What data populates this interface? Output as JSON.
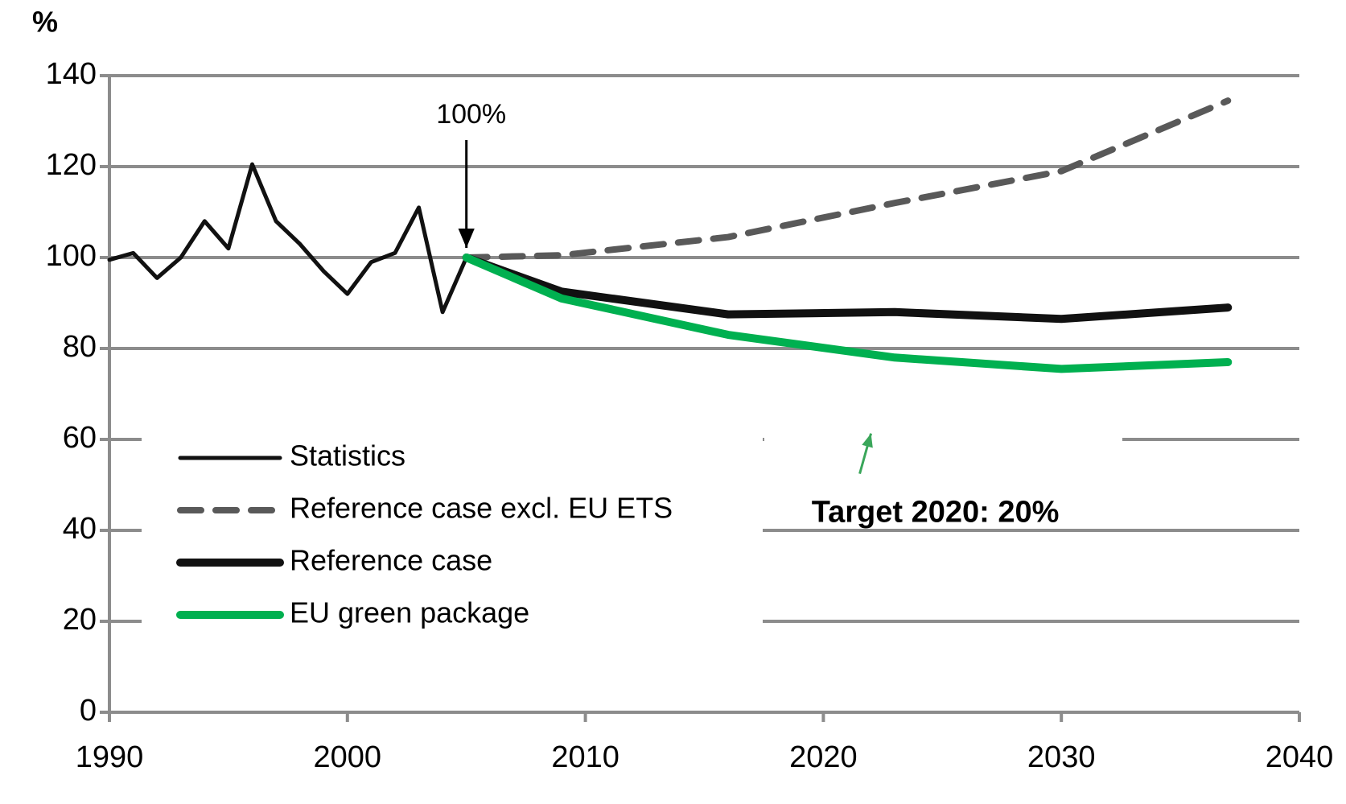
{
  "chart_data": {
    "type": "line",
    "y_label": "%",
    "xlim": [
      1990,
      2040
    ],
    "xticks": [
      1990,
      2000,
      2010,
      2020,
      2030,
      2040
    ],
    "ylim": [
      0,
      140
    ],
    "yticks": [
      0,
      20,
      40,
      60,
      80,
      100,
      120,
      140
    ],
    "grid": true,
    "legend": "lower left",
    "series": [
      {
        "name": "Statistics",
        "color": "#111111",
        "style": "solid",
        "x": [
          1990,
          1991,
          1992,
          1993,
          1994,
          1995,
          1996,
          1997,
          1998,
          1999,
          2000,
          2001,
          2002,
          2003,
          2004,
          2005
        ],
        "values": [
          99.5,
          101,
          95.5,
          100,
          108,
          102,
          120.5,
          108,
          103,
          97,
          92,
          99,
          101,
          111,
          88,
          100
        ]
      },
      {
        "name": "Reference case excl. EU  ETS",
        "color": "#595959",
        "style": "dashed",
        "x": [
          2005,
          2009,
          2016,
          2023,
          2030,
          2037
        ],
        "values": [
          100,
          100.5,
          104.5,
          112,
          119,
          134.5
        ]
      },
      {
        "name": "Reference case",
        "color": "#111111",
        "style": "thick",
        "x": [
          2005,
          2009,
          2016,
          2023,
          2030,
          2037
        ],
        "values": [
          100,
          92.5,
          87.5,
          88,
          86.5,
          89
        ]
      },
      {
        "name": "EU green package",
        "color": "#00b050",
        "style": "thick",
        "x": [
          2005,
          2009,
          2016,
          2023,
          2030,
          2037
        ],
        "values": [
          100,
          91,
          83,
          78,
          75.5,
          77
        ]
      }
    ],
    "annotations": [
      {
        "text": "100%",
        "x": 2005,
        "y": 100,
        "color": "#000000"
      },
      {
        "text": "Target 2020: 20%",
        "x": 2022,
        "y": 79,
        "color": "#3aa65a"
      }
    ]
  }
}
